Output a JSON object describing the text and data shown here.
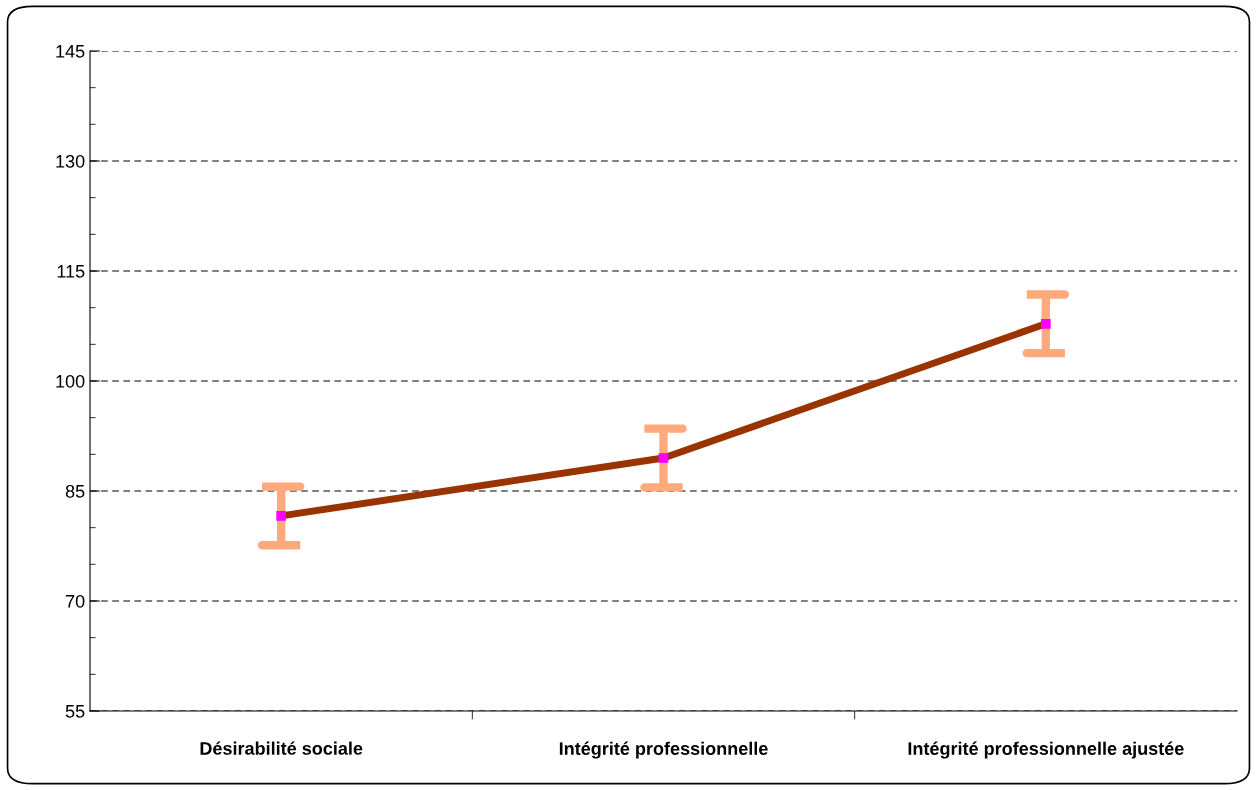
{
  "chart_data": {
    "type": "line",
    "categories": [
      "Désirabilité sociale",
      "Intégrité professionnelle",
      "Intégrité professionnelle ajustée"
    ],
    "series": [
      {
        "color": "#993300",
        "values": [
          81.6,
          89.5,
          107.8
        ],
        "errors": [
          4,
          4,
          4
        ]
      }
    ],
    "ylim": [
      55,
      145
    ],
    "yticks": [
      55,
      70,
      85,
      100,
      115,
      130,
      145
    ],
    "grid": "y",
    "marker": "square",
    "line_style": "solid"
  }
}
